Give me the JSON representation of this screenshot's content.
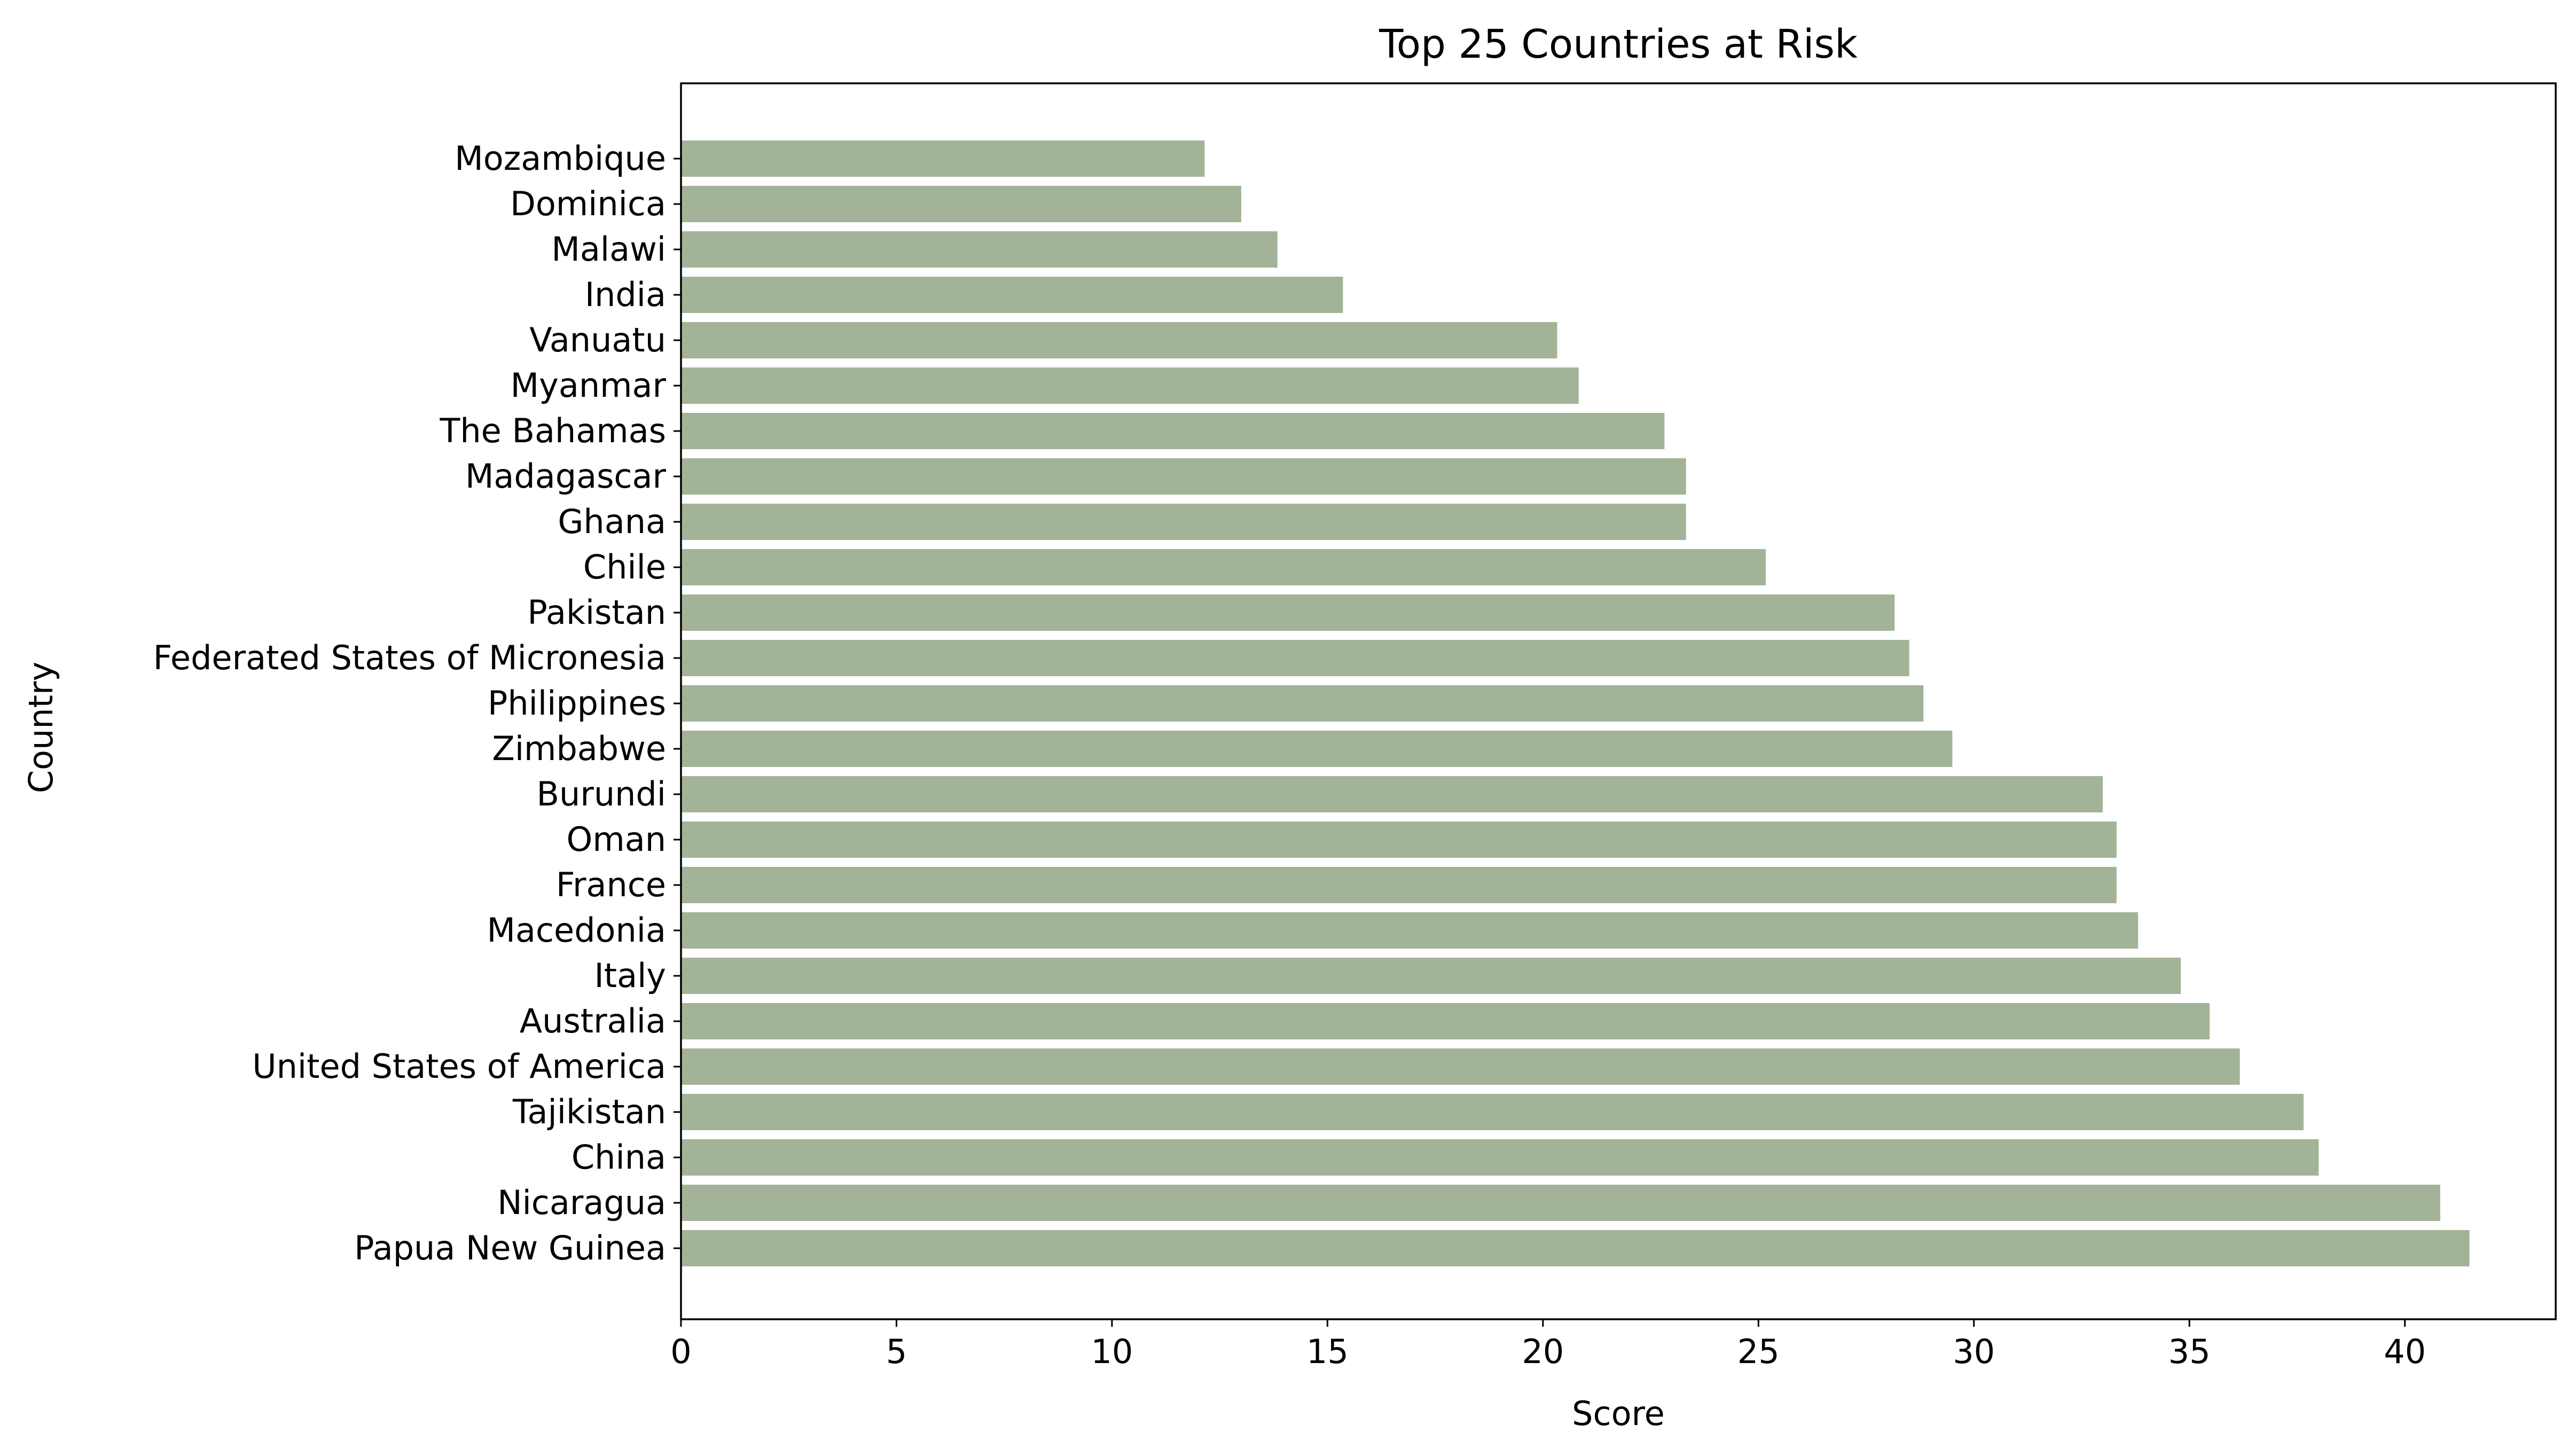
{
  "chart_data": {
    "type": "bar",
    "orientation": "horizontal",
    "title": "Top 25 Countries at Risk",
    "xlabel": "Score",
    "ylabel": "Country",
    "xlim": [
      0,
      43.5
    ],
    "xticks": [
      0,
      5,
      10,
      15,
      20,
      25,
      30,
      35,
      40
    ],
    "grid": false,
    "legend": "none",
    "bar_color": "#a3b398",
    "categories": [
      "Mozambique",
      "Dominica",
      "Malawi",
      "India",
      "Vanuatu",
      "Myanmar",
      "The Bahamas",
      "Madagascar",
      "Ghana",
      "Chile",
      "Pakistan",
      "Federated States of Micronesia",
      "Philippines",
      "Zimbabwe",
      "Burundi",
      "Oman",
      "France",
      "Macedonia",
      "Italy",
      "Australia",
      "United States of America",
      "Tajikistan",
      "China",
      "Nicaragua",
      "Papua New Guinea"
    ],
    "values": [
      12.15,
      13.0,
      13.84,
      15.36,
      20.33,
      20.83,
      22.82,
      23.32,
      23.32,
      25.17,
      28.16,
      28.5,
      28.83,
      29.5,
      32.99,
      33.31,
      33.31,
      33.81,
      34.8,
      35.47,
      36.17,
      37.65,
      38.0,
      40.82,
      41.5
    ]
  }
}
